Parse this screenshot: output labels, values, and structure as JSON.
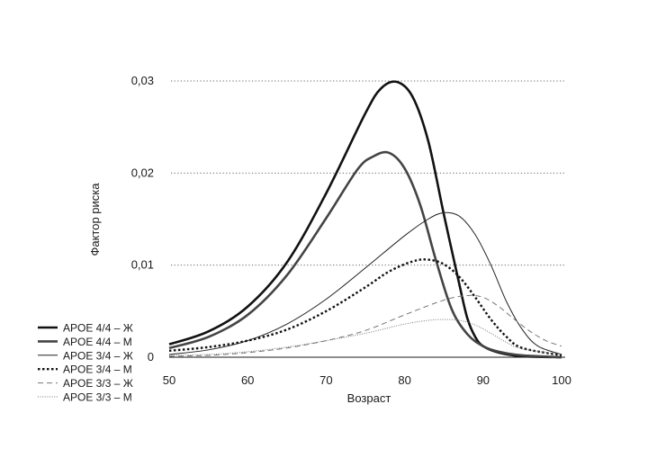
{
  "chart_data": {
    "type": "line",
    "title": "",
    "xlabel": "Возраст",
    "ylabel": "Фактор риска",
    "xlim": [
      50,
      100
    ],
    "ylim": [
      0,
      0.03
    ],
    "x_ticks": [
      {
        "value": 50,
        "label": "50"
      },
      {
        "value": 60,
        "label": "60"
      },
      {
        "value": 70,
        "label": "70"
      },
      {
        "value": 80,
        "label": "80"
      },
      {
        "value": 90,
        "label": "90"
      },
      {
        "value": 100,
        "label": "100"
      }
    ],
    "y_ticks": [
      {
        "value": 0,
        "label": "0"
      },
      {
        "value": 0.01,
        "label": "0,01"
      },
      {
        "value": 0.02,
        "label": "0,02"
      },
      {
        "value": 0.03,
        "label": "0,03"
      }
    ],
    "grid": "horizontal dotted",
    "legend_position": "bottom-left",
    "series": [
      {
        "name": "APOE 4/4 – Ж",
        "style": "thick-solid",
        "color": "#111111",
        "x": [
          50,
          55,
          60,
          65,
          70,
          75,
          77,
          79,
          81,
          83,
          85,
          87,
          88,
          89,
          90,
          92,
          95,
          100
        ],
        "y": [
          0.0014,
          0.0028,
          0.0055,
          0.0103,
          0.0178,
          0.0265,
          0.0292,
          0.0299,
          0.0283,
          0.0235,
          0.0155,
          0.0078,
          0.0042,
          0.0022,
          0.0012,
          0.0005,
          0.0001,
          0.0
        ]
      },
      {
        "name": "APOE 4/4 – М",
        "style": "thick-solid",
        "color": "#444444",
        "x": [
          50,
          55,
          60,
          65,
          70,
          74,
          76,
          78,
          80,
          82,
          84,
          86,
          88,
          90,
          92,
          95,
          100
        ],
        "y": [
          0.001,
          0.0022,
          0.0046,
          0.0089,
          0.0151,
          0.0204,
          0.0218,
          0.0222,
          0.0205,
          0.0165,
          0.0105,
          0.0052,
          0.0025,
          0.0012,
          0.0006,
          0.0002,
          0.0
        ]
      },
      {
        "name": "APOE 3/4 – Ж",
        "style": "thin-solid",
        "color": "#222222",
        "x": [
          50,
          55,
          60,
          65,
          70,
          75,
          80,
          83,
          85,
          87,
          89,
          91,
          93,
          95,
          97,
          100
        ],
        "y": [
          0.0003,
          0.0008,
          0.0018,
          0.0036,
          0.0063,
          0.0097,
          0.0132,
          0.015,
          0.0157,
          0.0153,
          0.0133,
          0.01,
          0.006,
          0.003,
          0.0012,
          0.0003
        ]
      },
      {
        "name": "APOE 3/4 – М",
        "style": "dotted-thick",
        "color": "#111111",
        "x": [
          50,
          55,
          60,
          65,
          70,
          75,
          78,
          81,
          83,
          85,
          87,
          89,
          91,
          93,
          95,
          100
        ],
        "y": [
          0.0007,
          0.0011,
          0.0018,
          0.003,
          0.005,
          0.0076,
          0.0093,
          0.0104,
          0.0106,
          0.0101,
          0.0087,
          0.0065,
          0.0041,
          0.0022,
          0.001,
          0.0002
        ]
      },
      {
        "name": "APOE 3/3 – Ж",
        "style": "dashed-thin",
        "color": "#777777",
        "x": [
          50,
          55,
          60,
          65,
          70,
          75,
          80,
          85,
          88,
          90,
          92,
          94,
          96,
          98,
          100
        ],
        "y": [
          0.0001,
          0.0002,
          0.0005,
          0.001,
          0.0018,
          0.0029,
          0.0046,
          0.0062,
          0.0067,
          0.0065,
          0.0055,
          0.0041,
          0.0028,
          0.0018,
          0.0012
        ]
      },
      {
        "name": "APOE 3/3 – М",
        "style": "dotted-thin",
        "color": "#777777",
        "x": [
          50,
          55,
          60,
          65,
          70,
          75,
          80,
          83,
          85,
          87,
          89,
          91,
          93,
          95,
          100
        ],
        "y": [
          0.0002,
          0.0003,
          0.0006,
          0.0011,
          0.0018,
          0.0026,
          0.0036,
          0.004,
          0.0041,
          0.004,
          0.0035,
          0.0026,
          0.0016,
          0.0009,
          0.0003
        ]
      }
    ]
  }
}
